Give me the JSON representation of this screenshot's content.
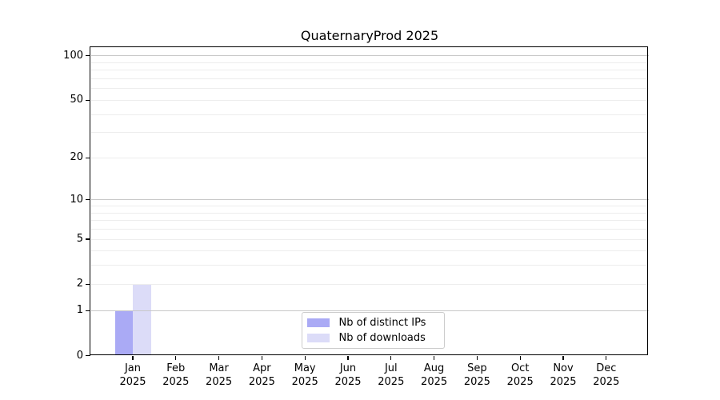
{
  "chart_data": {
    "type": "bar",
    "title": "QuaternaryProd 2025",
    "x": {
      "categories": [
        "Jan",
        "Feb",
        "Mar",
        "Apr",
        "May",
        "Jun",
        "Jul",
        "Aug",
        "Sep",
        "Oct",
        "Nov",
        "Dec"
      ],
      "year_label": "2025"
    },
    "y": {
      "scale": "log1p",
      "tick_labels": [
        0,
        1,
        2,
        5,
        10,
        20,
        50,
        100
      ],
      "major_gridlines": [
        1,
        10,
        100
      ],
      "minor_gridlines": [
        2,
        3,
        4,
        5,
        6,
        7,
        8,
        9,
        20,
        30,
        40,
        50,
        60,
        70,
        80,
        90
      ],
      "max": 100
    },
    "series": [
      {
        "name": "Nb of distinct IPs",
        "color": "#aaaaf5",
        "values": [
          1,
          0,
          0,
          0,
          0,
          0,
          0,
          0,
          0,
          0,
          0,
          0
        ]
      },
      {
        "name": "Nb of downloads",
        "color": "#dcdcf8",
        "values": [
          2,
          0,
          0,
          0,
          0,
          0,
          0,
          0,
          0,
          0,
          0,
          0
        ]
      }
    ],
    "legend_position": "bottom-center",
    "grid": true
  },
  "colors": {
    "spine": "#000000",
    "major_grid": "#c8c8c8",
    "minor_grid": "#ededed",
    "bar_ips": "#aaaaf5",
    "bar_downloads": "#dcdcf8",
    "legend_border": "#cccccc",
    "text": "#000000"
  }
}
